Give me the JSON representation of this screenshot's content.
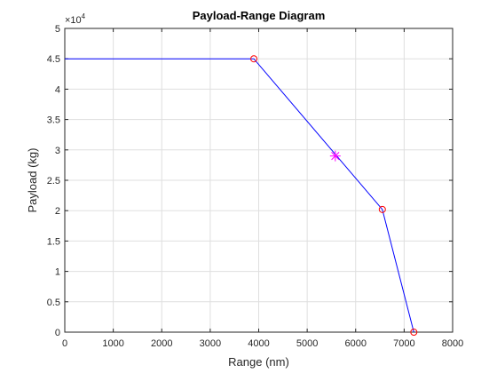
{
  "chart_data": {
    "type": "line",
    "title": "Payload-Range Diagram",
    "xlabel": "Range (nm)",
    "ylabel": "Payload (kg)",
    "xlim": [
      0,
      8000
    ],
    "ylim": [
      0,
      50000
    ],
    "grid": true,
    "x_ticks": [
      "0",
      "1000",
      "2000",
      "3000",
      "4000",
      "5000",
      "6000",
      "7000",
      "8000"
    ],
    "y_ticks": [
      "0",
      "0.5",
      "1",
      "1.5",
      "2",
      "2.5",
      "3",
      "3.5",
      "4",
      "4.5",
      "5"
    ],
    "y_exponent_label": "×10",
    "y_exponent_power": "4",
    "series": [
      {
        "x": [
          0,
          3900,
          6550,
          7200
        ],
        "y": [
          45000,
          45000,
          20200,
          0
        ],
        "color": "#0000ff",
        "line_style": "solid"
      }
    ],
    "markers": [
      {
        "x": [
          3900,
          6550,
          7200
        ],
        "y": [
          45000,
          20200,
          0
        ],
        "marker": "circle",
        "color": "#ff0000"
      },
      {
        "x": [
          5580
        ],
        "y": [
          29000
        ],
        "marker": "asterisk",
        "color": "#ff00ff"
      }
    ]
  }
}
